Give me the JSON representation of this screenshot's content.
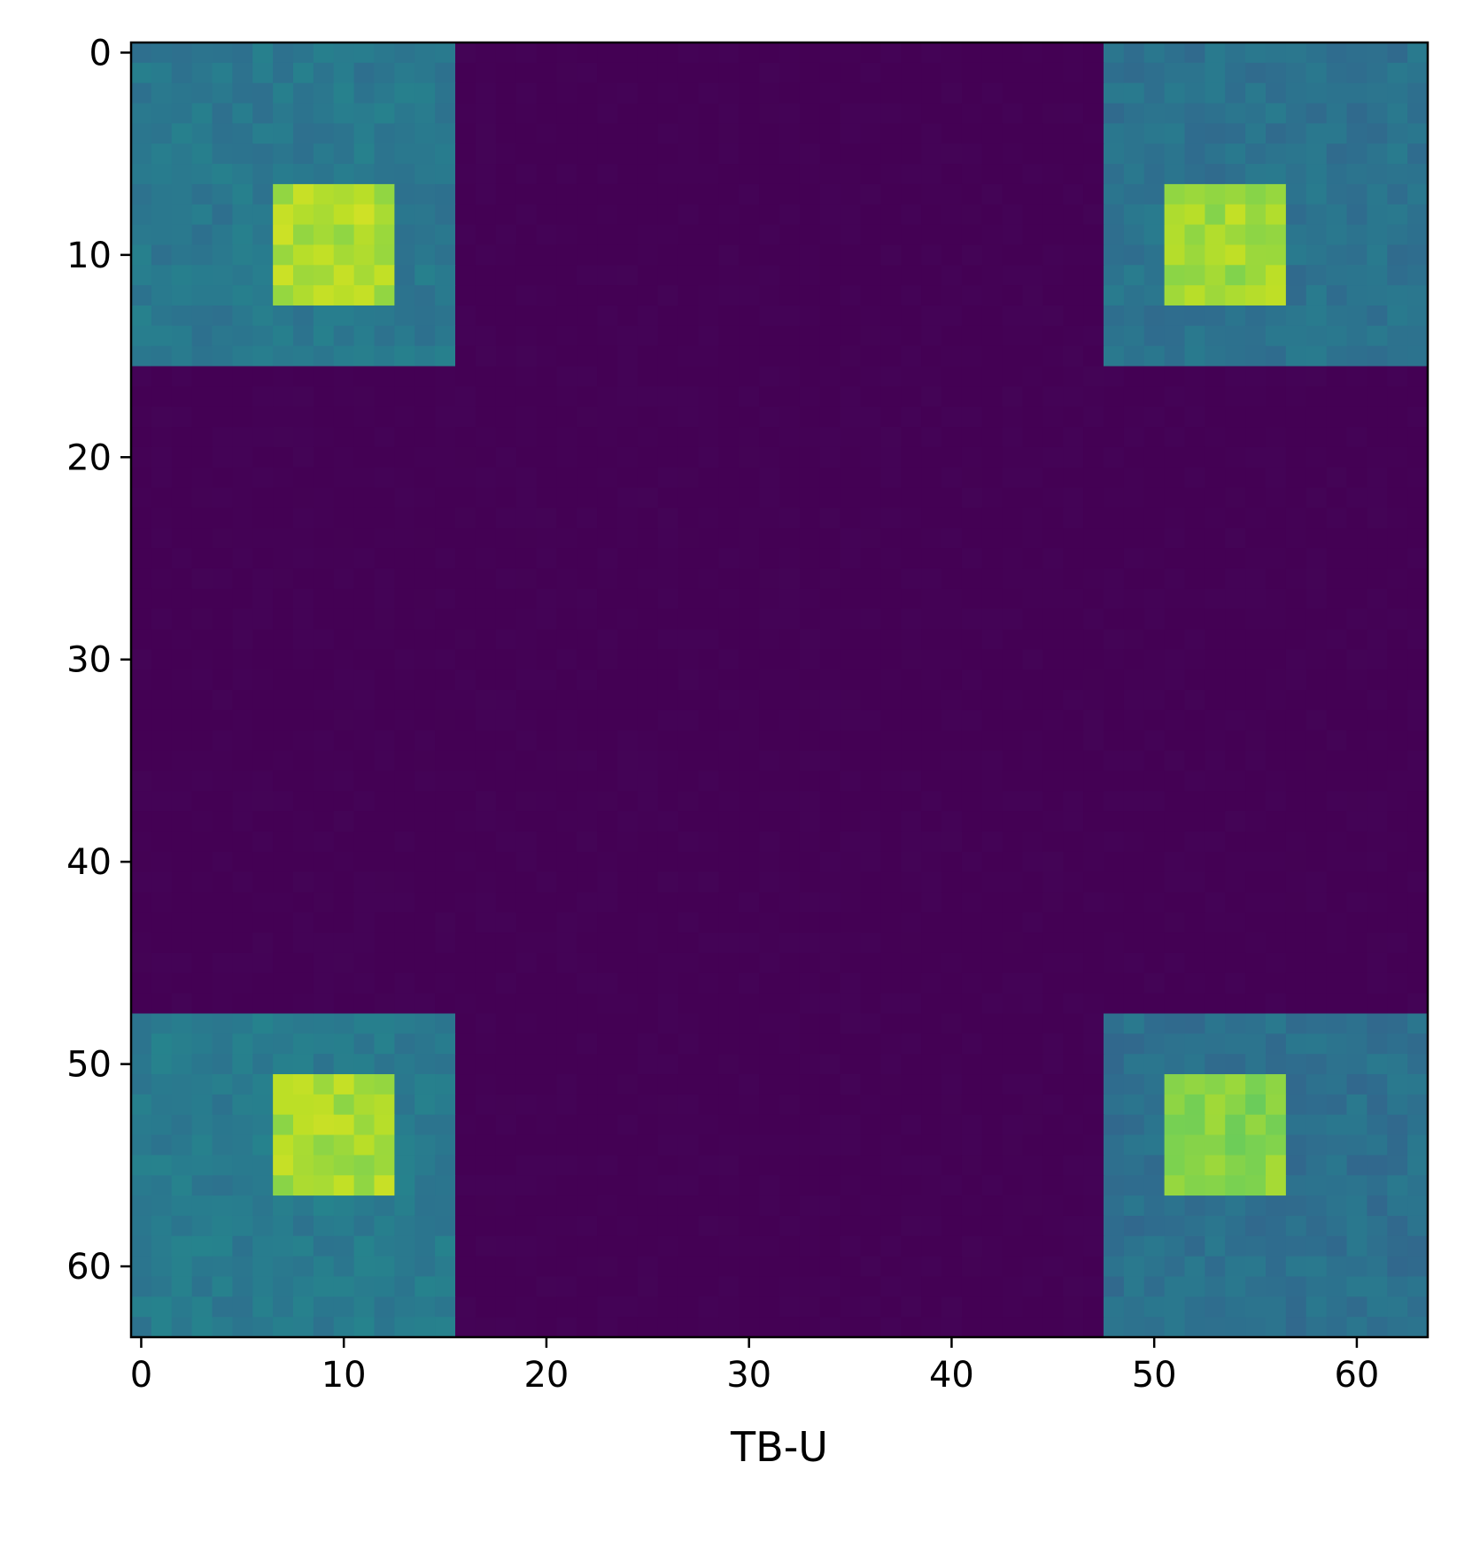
{
  "chart_data": {
    "type": "heatmap",
    "title": "",
    "xlabel": "TB-U",
    "ylabel": "",
    "size": [
      64,
      64
    ],
    "xlim": [
      -0.5,
      63.5
    ],
    "ylim": [
      63.5,
      -0.5
    ],
    "x_ticks": [
      0,
      10,
      20,
      30,
      40,
      50,
      60
    ],
    "y_ticks": [
      0,
      10,
      20,
      30,
      40,
      50,
      60
    ],
    "x_tick_labels": [
      "0",
      "10",
      "20",
      "30",
      "40",
      "50",
      "60"
    ],
    "y_tick_labels": [
      "0",
      "10",
      "20",
      "30",
      "40",
      "50",
      "60"
    ],
    "colormap": "viridis",
    "grid": false,
    "legend": "none",
    "colors": {
      "background": "#440154",
      "corner_block": "#2c728e",
      "inner_square": "#b8de29",
      "brightest": "#fde725"
    },
    "regions": [
      {
        "name": "background",
        "rows": [
          0,
          63
        ],
        "cols": [
          0,
          63
        ],
        "value": 0.0
      },
      {
        "name": "corner-block-top-left",
        "rows": [
          0,
          15
        ],
        "cols": [
          0,
          15
        ],
        "value": 0.4
      },
      {
        "name": "corner-block-top-right",
        "rows": [
          0,
          15
        ],
        "cols": [
          48,
          63
        ],
        "value": 0.38
      },
      {
        "name": "corner-block-bottom-left",
        "rows": [
          48,
          63
        ],
        "cols": [
          0,
          15
        ],
        "value": 0.41
      },
      {
        "name": "corner-block-bottom-right",
        "rows": [
          48,
          63
        ],
        "cols": [
          48,
          63
        ],
        "value": 0.37
      },
      {
        "name": "inner-square-top-left",
        "rows": [
          7,
          12
        ],
        "cols": [
          7,
          12
        ],
        "value": 0.88
      },
      {
        "name": "inner-square-top-right",
        "rows": [
          7,
          12
        ],
        "cols": [
          51,
          56
        ],
        "value": 0.86
      },
      {
        "name": "inner-square-bottom-left",
        "rows": [
          51,
          56
        ],
        "cols": [
          7,
          12
        ],
        "value": 0.87
      },
      {
        "name": "inner-square-bottom-right",
        "rows": [
          51,
          56
        ],
        "cols": [
          51,
          56
        ],
        "value": 0.82
      }
    ]
  }
}
